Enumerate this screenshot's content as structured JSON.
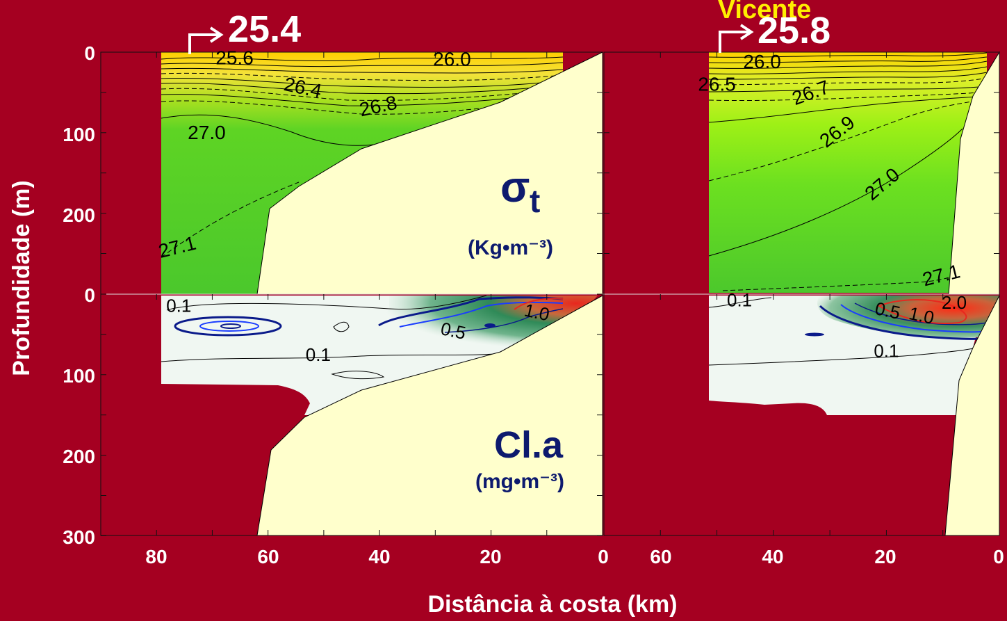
{
  "chart_data": [
    {
      "type": "heatmap",
      "panel": "left-top",
      "variable": "σt",
      "title_main": "σ",
      "title_sub": "t",
      "units": "(Kg•m⁻³)",
      "section_label": "25.4",
      "xlabel": "Distância à costa (km)",
      "ylabel": "Profundidade (m)",
      "x_ticks": [
        "80",
        "60",
        "40",
        "20",
        "0"
      ],
      "y_ticks": [
        "0",
        "100",
        "200"
      ],
      "xlim": [
        90,
        0
      ],
      "ylim": [
        0,
        300
      ],
      "contour_labels": [
        {
          "text": "25.6",
          "x": 66,
          "y": 15
        },
        {
          "text": "26.0",
          "x": 27,
          "y": 17
        },
        {
          "text": "26.4",
          "x": 54,
          "y": 52
        },
        {
          "text": "26.8",
          "x": 40,
          "y": 75
        },
        {
          "text": "27.0",
          "x": 71,
          "y": 108
        },
        {
          "text": "27.1",
          "x": 76,
          "y": 250
        }
      ],
      "colors": {
        "low": "#ffd000",
        "mid": "#8cdc1e",
        "high": "#46c832"
      }
    },
    {
      "type": "heatmap",
      "panel": "left-bottom",
      "variable": "Cl.a",
      "title_main": "Cl.a",
      "units": "(mg•m⁻³)",
      "xlabel": "Distância à costa (km)",
      "ylabel": "Profundidade (m)",
      "x_ticks": [
        "80",
        "60",
        "40",
        "20",
        "0"
      ],
      "y_ticks": [
        "0",
        "100",
        "200",
        "300"
      ],
      "xlim": [
        90,
        0
      ],
      "ylim": [
        0,
        300
      ],
      "contour_labels": [
        {
          "text": "0.1",
          "x": 76,
          "y": 22
        },
        {
          "text": "0.1",
          "x": 51,
          "y": 83
        },
        {
          "text": "0.5",
          "x": 27,
          "y": 53
        },
        {
          "text": "1.0",
          "x": 12,
          "y": 30
        }
      ],
      "colors": {
        "low": "#eef6ee",
        "mid": "#3a9a64",
        "high": "#e8281e"
      }
    },
    {
      "type": "heatmap",
      "panel": "right-top",
      "variable": "σt",
      "section_label": "25.8",
      "station_name": "Vicente",
      "x_ticks": [
        "60",
        "40",
        "20",
        "0"
      ],
      "xlim": [
        70,
        0
      ],
      "ylim": [
        0,
        300
      ],
      "contour_labels": [
        {
          "text": "26.0",
          "x": 42,
          "y": 20
        },
        {
          "text": "26.5",
          "x": 50,
          "y": 48
        },
        {
          "text": "26.7",
          "x": 33,
          "y": 58
        },
        {
          "text": "26.9",
          "x": 28,
          "y": 105
        },
        {
          "text": "27.0",
          "x": 20,
          "y": 170
        },
        {
          "text": "27.1",
          "x": 10,
          "y": 285
        }
      ],
      "colors": {
        "low": "#ffd000",
        "mid": "#9ae614",
        "high": "#46c832"
      }
    },
    {
      "type": "heatmap",
      "panel": "right-bottom",
      "variable": "Cl.a",
      "x_ticks": [
        "60",
        "40",
        "20",
        "0"
      ],
      "xlim": [
        70,
        0
      ],
      "ylim": [
        0,
        300
      ],
      "contour_labels": [
        {
          "text": "0.1",
          "x": 46,
          "y": 15
        },
        {
          "text": "0.5",
          "x": 20,
          "y": 28
        },
        {
          "text": "1.0",
          "x": 14,
          "y": 34
        },
        {
          "text": "2.0",
          "x": 8,
          "y": 18
        },
        {
          "text": "0.1",
          "x": 20,
          "y": 78
        }
      ],
      "colors": {
        "low": "#eef6ee",
        "mid": "#3a9a64",
        "high": "#e8281e"
      }
    }
  ]
}
